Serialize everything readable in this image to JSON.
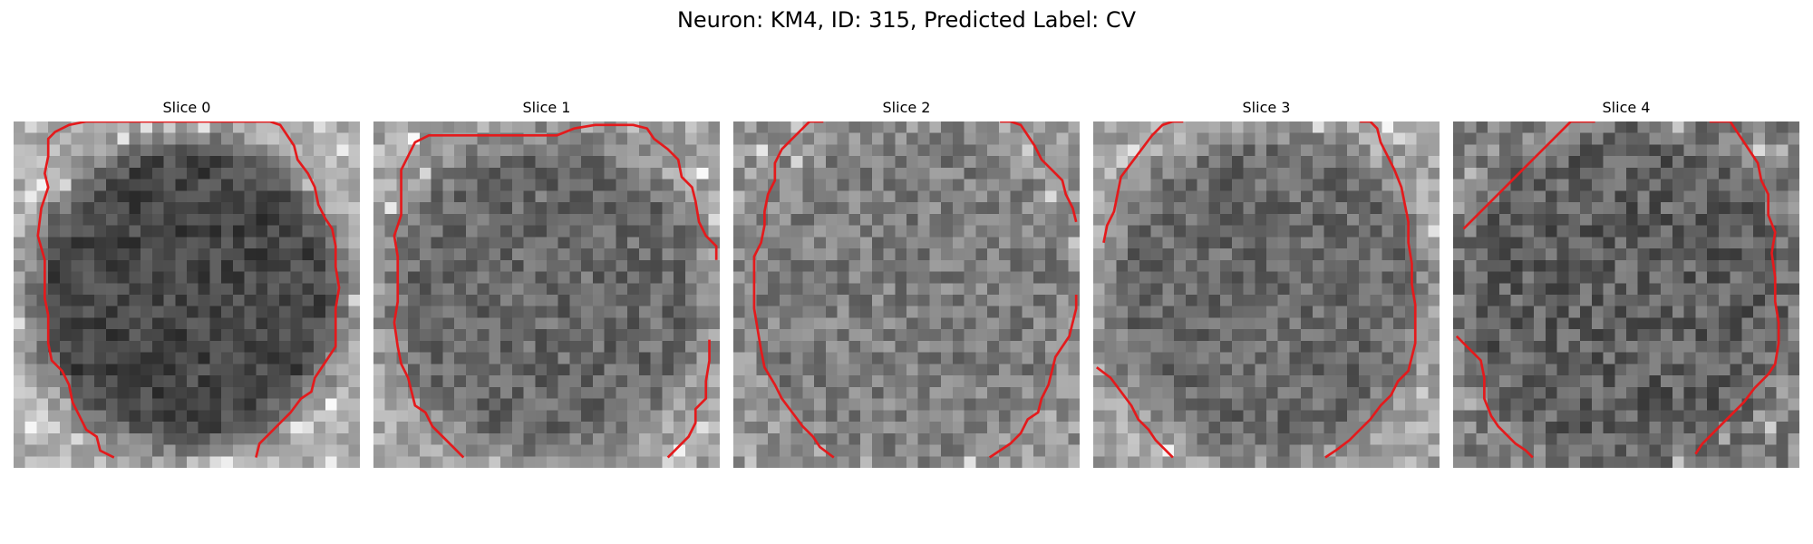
{
  "figure": {
    "title": "Neuron: KM4, ID: 315, Predicted Label: CV"
  },
  "panels": [
    {
      "title": "Slice 0",
      "seed": 11,
      "style": "dark-center",
      "contour": [
        [
          35,
          0
        ],
        [
          40,
          -5
        ],
        [
          40,
          8
        ],
        [
          30,
          20
        ],
        [
          20,
          35
        ],
        [
          25,
          45
        ],
        [
          0,
          68
        ],
        [
          45,
          88
        ],
        [
          75,
          45
        ],
        [
          80,
          52
        ],
        [
          96,
          34
        ],
        [
          95,
          -5
        ],
        [
          85,
          0
        ],
        [
          80,
          8
        ],
        [
          65,
          22
        ],
        [
          55,
          35
        ],
        [
          40,
          40
        ]
      ]
    },
    {
      "title": "Slice 1",
      "seed": 23,
      "style": "mid-center",
      "contour": []
    },
    {
      "title": "Slice 2",
      "seed": 37,
      "style": "light-center",
      "contour": []
    },
    {
      "title": "Slice 3",
      "seed": 51,
      "style": "mid-center",
      "contour": []
    },
    {
      "title": "Slice 4",
      "seed": 67,
      "style": "grainy",
      "contour": []
    }
  ],
  "colors": {
    "contour": "#e41a1c",
    "background": "#ffffff"
  }
}
